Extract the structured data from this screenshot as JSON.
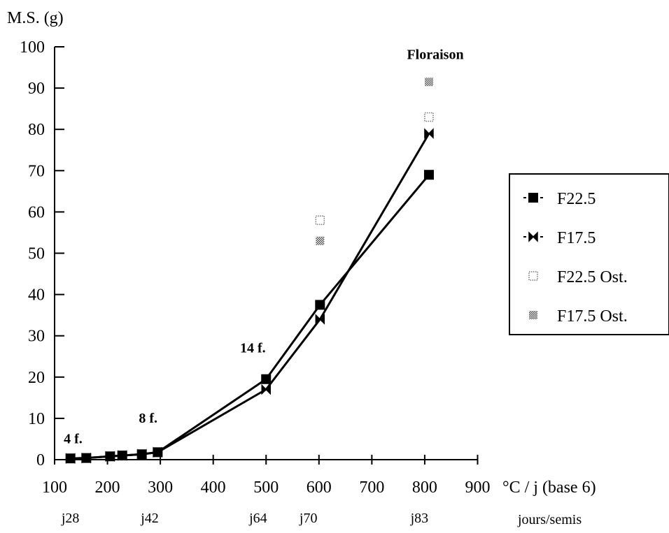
{
  "chart_data": {
    "type": "line",
    "title": "",
    "ylabel": "M.S. (g)",
    "xlabel": "°C / j (base 6)",
    "x2label": "jours/semis",
    "xlim": [
      100,
      900
    ],
    "ylim": [
      0,
      100
    ],
    "xticks": [
      100,
      200,
      300,
      400,
      500,
      600,
      700,
      800,
      900
    ],
    "yticks": [
      0,
      10,
      20,
      30,
      40,
      50,
      60,
      70,
      80,
      90,
      100
    ],
    "day_ticks": [
      {
        "x": 130,
        "label": "j28"
      },
      {
        "x": 280,
        "label": "j42"
      },
      {
        "x": 485,
        "label": "j64"
      },
      {
        "x": 580,
        "label": "j70"
      },
      {
        "x": 790,
        "label": "j83"
      }
    ],
    "annotations": [
      {
        "text": "4 f.",
        "x": 135,
        "y": 4
      },
      {
        "text": "8 f.",
        "x": 277,
        "y": 9
      },
      {
        "text": "14 f.",
        "x": 475,
        "y": 26
      },
      {
        "text": "Floraison",
        "x": 820,
        "y": 97
      }
    ],
    "series": [
      {
        "name": "F22.5",
        "marker": "filled-square",
        "line": true,
        "points": [
          [
            130,
            0.3
          ],
          [
            160,
            0.4
          ],
          [
            205,
            0.8
          ],
          [
            228,
            1
          ],
          [
            265,
            1.3
          ],
          [
            295,
            1.8
          ],
          [
            500,
            19.5
          ],
          [
            602,
            37.5
          ],
          [
            808,
            69
          ]
        ]
      },
      {
        "name": "F17.5",
        "marker": "bowtie",
        "line": true,
        "points": [
          [
            130,
            0.3
          ],
          [
            160,
            0.4
          ],
          [
            205,
            0.8
          ],
          [
            228,
            1
          ],
          [
            265,
            1.3
          ],
          [
            295,
            1.8
          ],
          [
            500,
            17
          ],
          [
            602,
            34
          ],
          [
            808,
            79
          ]
        ]
      },
      {
        "name": "F22.5 Ost.",
        "marker": "dotted-square",
        "line": false,
        "points": [
          [
            602,
            58
          ],
          [
            808,
            83
          ]
        ]
      },
      {
        "name": "F17.5 Ost.",
        "marker": "hatched-square",
        "line": false,
        "points": [
          [
            602,
            53
          ],
          [
            808,
            91.5
          ]
        ]
      }
    ],
    "legend": {
      "position": "right"
    }
  }
}
